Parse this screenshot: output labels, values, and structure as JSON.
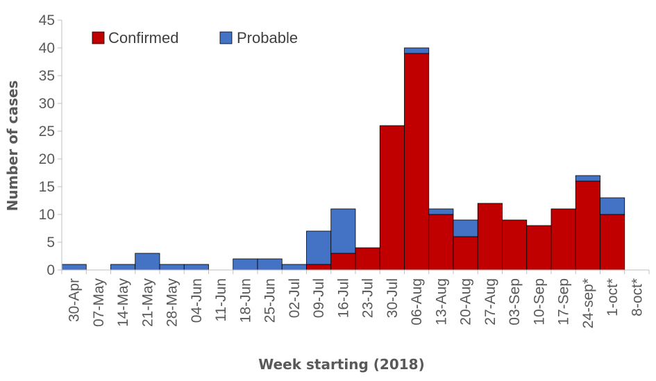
{
  "chart_data": {
    "type": "bar",
    "stacked": true,
    "xlabel": "Week starting (2018)",
    "ylabel": "Number of cases",
    "ylim": [
      0,
      45
    ],
    "yticks": [
      0,
      5,
      10,
      15,
      20,
      25,
      30,
      35,
      40,
      45
    ],
    "grid": false,
    "legend_position": "top-left",
    "categories": [
      "30-Apr",
      "07-May",
      "14-May",
      "21-May",
      "28-May",
      "04-Jun",
      "11-Jun",
      "18-Jun",
      "25-Jun",
      "02-Jul",
      "09-Jul",
      "16-Jul",
      "23-Jul",
      "30-Jul",
      "06-Aug",
      "13-Aug",
      "20-Aug",
      "27-Aug",
      "03-Sep",
      "10-Sep",
      "17-Sep",
      "24-sep*",
      "1-oct*",
      "8-oct*"
    ],
    "series": [
      {
        "name": "Confirmed",
        "color": "#c00000",
        "values": [
          0,
          0,
          0,
          0,
          0,
          0,
          0,
          0,
          0,
          0,
          1,
          3,
          4,
          26,
          39,
          10,
          6,
          12,
          9,
          8,
          11,
          16,
          10,
          0
        ]
      },
      {
        "name": "Probable",
        "color": "#4472c4",
        "values": [
          1,
          0,
          1,
          3,
          1,
          1,
          0,
          2,
          2,
          1,
          6,
          8,
          0,
          0,
          1,
          1,
          3,
          0,
          0,
          0,
          0,
          1,
          3,
          0
        ]
      }
    ]
  }
}
